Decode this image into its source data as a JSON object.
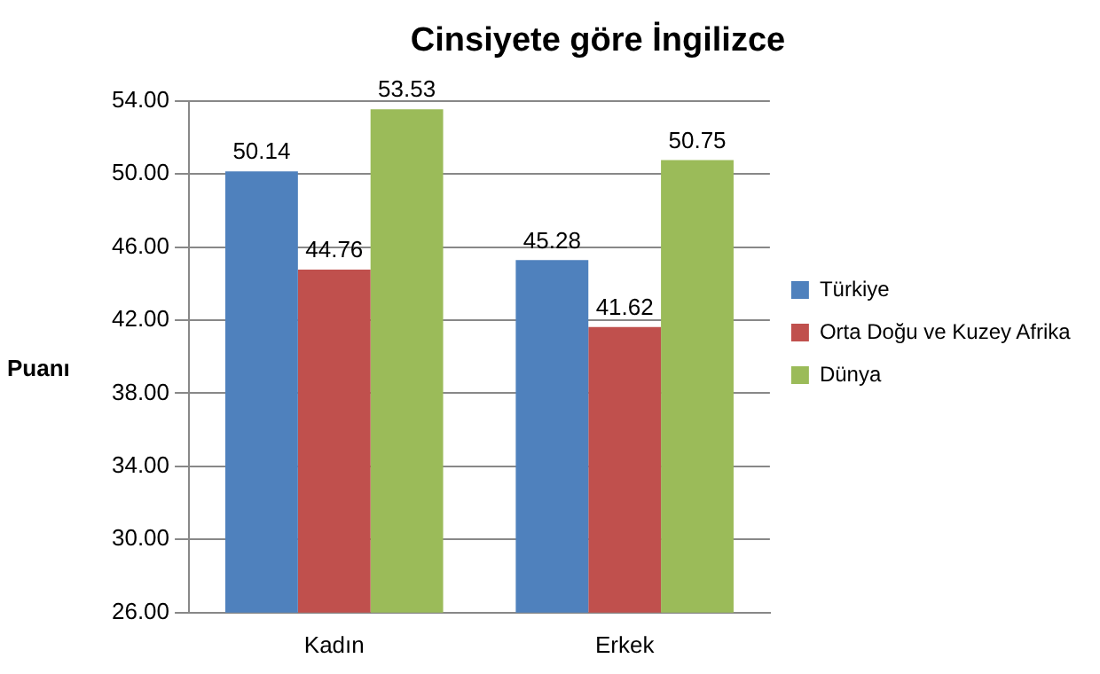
{
  "chart_data": {
    "type": "bar",
    "title": "Cinsiyete göre İngilizce",
    "ylabel": "Puanı",
    "categories": [
      "Kadın",
      "Erkek"
    ],
    "series": [
      {
        "name": "Türkiye",
        "color": "#4f81bd",
        "values": [
          50.14,
          45.28
        ]
      },
      {
        "name": "Orta Doğu ve Kuzey Afrika",
        "color": "#c0504d",
        "values": [
          44.76,
          41.62
        ]
      },
      {
        "name": "Dünya",
        "color": "#9bbb59",
        "values": [
          53.53,
          50.75
        ]
      }
    ],
    "ylim": [
      26,
      54
    ],
    "yticks": [
      {
        "value": 26,
        "label": "26.00"
      },
      {
        "value": 30,
        "label": "30.00"
      },
      {
        "value": 34,
        "label": "34.00"
      },
      {
        "value": 38,
        "label": "38.00"
      },
      {
        "value": 42,
        "label": "42.00"
      },
      {
        "value": 46,
        "label": "46.00"
      },
      {
        "value": 50,
        "label": "50.00"
      },
      {
        "value": 54,
        "label": "54.00"
      }
    ],
    "grid": "y",
    "legend": "right",
    "data_labels": true
  }
}
